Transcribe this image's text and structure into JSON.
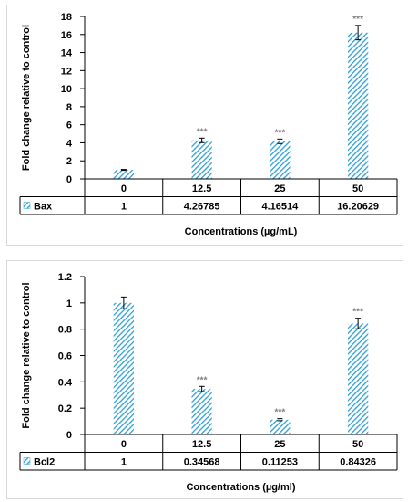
{
  "chart_data": [
    {
      "type": "bar",
      "categories": [
        "0",
        "12.5",
        "25",
        "50"
      ],
      "series": [
        {
          "name": "Bax",
          "values": [
            1,
            4.26785,
            4.16514,
            16.20629
          ],
          "value_labels": [
            "1",
            "4.26785",
            "4.16514",
            "16.20629"
          ],
          "errors": [
            0.05,
            0.25,
            0.25,
            0.8
          ]
        }
      ],
      "significance": [
        "",
        "***",
        "***",
        "***"
      ],
      "ylabel": "Fold change relative to control",
      "xlabel": "Concentrations (µg/mL)",
      "ylim": [
        0,
        18
      ],
      "yticks": [
        "0",
        "2",
        "4",
        "6",
        "8",
        "10",
        "12",
        "14",
        "16",
        "18"
      ],
      "grid": false,
      "legend": "data-table",
      "colors": {
        "bar": "#2e9fd6",
        "significance": "#7f7f7f"
      }
    },
    {
      "type": "bar",
      "categories": [
        "0",
        "12.5",
        "25",
        "50"
      ],
      "series": [
        {
          "name": "Bcl2",
          "values": [
            1,
            0.34568,
            0.11253,
            0.84326
          ],
          "value_labels": [
            "1",
            "0.34568",
            "0.11253",
            "0.84326"
          ],
          "errors": [
            0.045,
            0.02,
            0.008,
            0.04
          ]
        }
      ],
      "significance": [
        "",
        "***",
        "***",
        "***"
      ],
      "ylabel": "Fold change relative to control",
      "xlabel": "Concentrations (µg/ml)",
      "ylim": [
        0,
        1.2
      ],
      "yticks": [
        "0",
        "0.2",
        "0.4",
        "0.6",
        "0.8",
        "1",
        "1.2"
      ],
      "grid": false,
      "legend": "data-table",
      "colors": {
        "bar": "#2e9fd6",
        "significance": "#7f7f7f"
      }
    }
  ]
}
